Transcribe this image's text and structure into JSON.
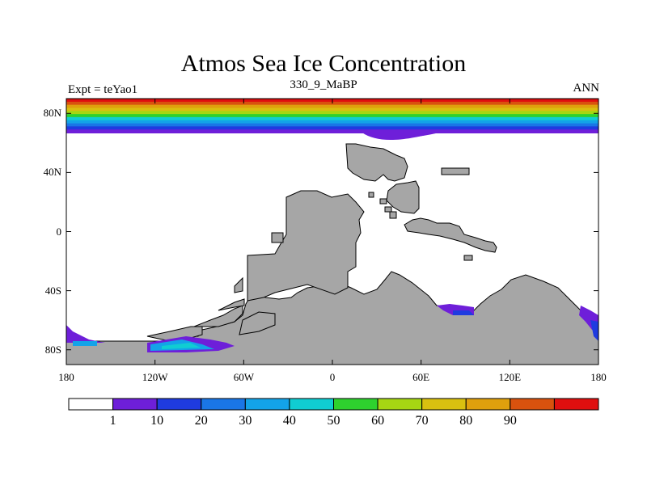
{
  "title": "Atmos Sea Ice Concentration",
  "left_label": "Expt = teYao1",
  "center_label": "330_9_MaBP",
  "right_label": "ANN",
  "colors": {
    "land": "#a6a6a6",
    "land_edge": "#000000",
    "axis": "#000000"
  },
  "chart_data": {
    "type": "heatmap",
    "title": "Atmos Sea Ice Concentration",
    "variable": "sea ice concentration",
    "xlabel": "",
    "ylabel": "",
    "xlim": [
      -180,
      180
    ],
    "ylim": [
      -90,
      90
    ],
    "lat_ticks": [
      "80N",
      "40N",
      "0",
      "40S",
      "80S"
    ],
    "lat_tick_values": [
      80,
      40,
      0,
      -40,
      -80
    ],
    "lon_ticks": [
      "180",
      "120W",
      "60W",
      "0",
      "60E",
      "120E",
      "180"
    ],
    "lon_tick_values": [
      -180,
      -120,
      -60,
      0,
      60,
      120,
      180
    ],
    "colorbar": {
      "labels": [
        "1",
        "10",
        "20",
        "30",
        "40",
        "50",
        "60",
        "70",
        "80",
        "90"
      ],
      "colors": [
        "#ffffff",
        "#6e1fd9",
        "#1f3be0",
        "#1a76e6",
        "#13a3e8",
        "#10cdd2",
        "#2ed12e",
        "#a6d613",
        "#d9c010",
        "#e0a00d",
        "#d9520e",
        "#e00f0f"
      ]
    },
    "northern_ice_band": {
      "edge_lat_approx": 67,
      "pole_value": 90,
      "note": "concentration increases poleward from about 1 at ~67N to over 90 at 90N"
    },
    "southern_ice_patches": [
      {
        "lon_range": [
          -180,
          -150
        ],
        "lat_range": [
          -80,
          -70
        ],
        "max_value": 40
      },
      {
        "lon_range": [
          -130,
          -75
        ],
        "lat_range": [
          -82,
          -72
        ],
        "max_value": 50
      },
      {
        "lon_range": [
          75,
          100
        ],
        "lat_range": [
          -58,
          -52
        ],
        "max_value": 20
      },
      {
        "lon_range": [
          165,
          180
        ],
        "lat_range": [
          -75,
          -58
        ],
        "max_value": 20
      }
    ]
  }
}
